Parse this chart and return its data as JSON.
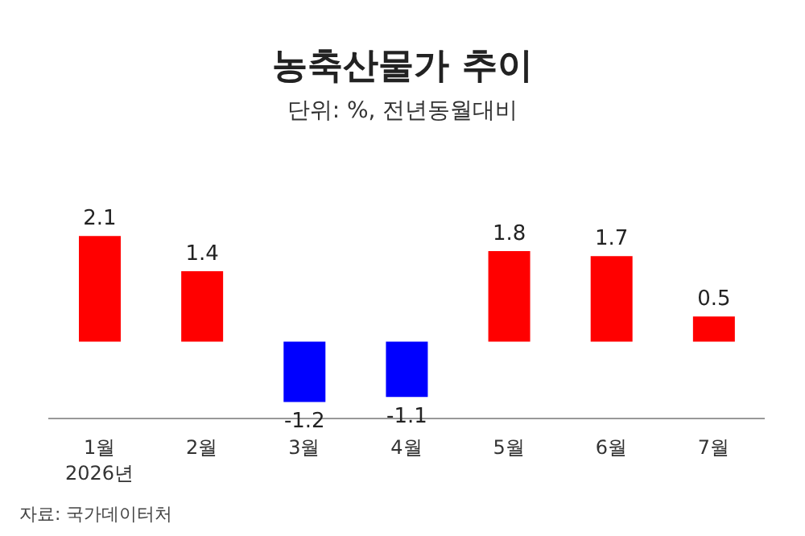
{
  "chart_data": {
    "type": "bar",
    "title": "농축산물가 추이",
    "subtitle": "단위: %, 전년동월대비",
    "categories": [
      "1월\n2026년",
      "2월",
      "3월",
      "4월",
      "5월",
      "6월",
      "7월"
    ],
    "values": [
      2.1,
      1.4,
      -1.2,
      -1.1,
      1.8,
      1.7,
      0.5
    ],
    "colors": [
      "#ff0000",
      "#ff0000",
      "#0000ff",
      "#0000ff",
      "#ff0000",
      "#ff0000",
      "#ff0000"
    ],
    "data_labels": true,
    "annotations": [
      "자료: 국가데이터처"
    ]
  }
}
